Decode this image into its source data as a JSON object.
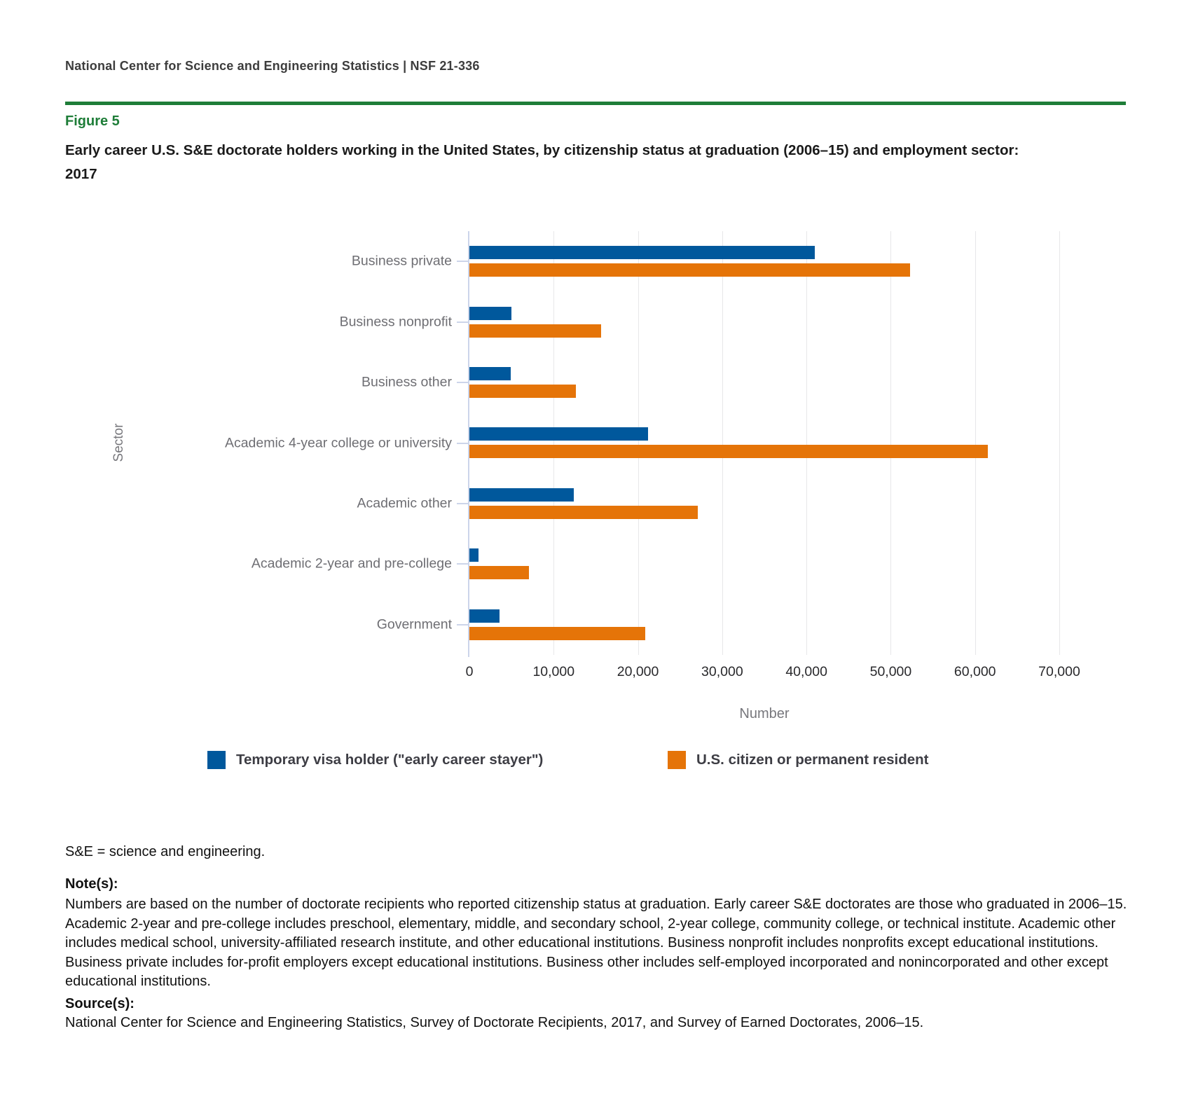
{
  "header": {
    "text": "National Center for Science and Engineering Statistics  |  NSF 21-336"
  },
  "figure_label": "Figure 5",
  "title": "Early career U.S. S&E doctorate holders working in the United States, by citizenship status at graduation (2006–15) and employment sector: 2017",
  "colors": {
    "accent_green": "#1e7d38",
    "series_blue": "#00589c",
    "series_orange": "#e57408",
    "axis_line": "#ccd5ea",
    "gridline": "#e7e7e9"
  },
  "chart_data": {
    "type": "bar",
    "orientation": "horizontal",
    "title": "Early career U.S. S&E doctorate holders working in the United States, by citizenship status at graduation (2006–15) and employment sector: 2017",
    "xlabel": "Number",
    "ylabel": "Sector",
    "xlim": [
      0,
      70000
    ],
    "xticks": [
      "0",
      "10,000",
      "20,000",
      "30,000",
      "40,000",
      "50,000",
      "60,000",
      "70,000"
    ],
    "grid": "vertical",
    "legend_position": "bottom",
    "categories": [
      "Business private",
      "Business nonprofit",
      "Business other",
      "Academic 4-year college or university",
      "Academic other",
      "Academic 2-year and pre-college",
      "Government"
    ],
    "series": [
      {
        "name": "Temporary visa holder (\"early career stayer\")",
        "color": "#00589c",
        "values": [
          41000,
          5000,
          4900,
          21200,
          12400,
          1100,
          3600
        ]
      },
      {
        "name": "U.S. citizen or permanent resident",
        "color": "#e57408",
        "values": [
          52300,
          15600,
          12600,
          61500,
          27100,
          7100,
          20900
        ]
      }
    ]
  },
  "notes": {
    "abbreviation": "S&E = science and engineering.",
    "notes_heading": "Note(s):",
    "notes_body": "Numbers are based on the number of doctorate recipients who reported citizenship status at graduation. Early career S&E doctorates are those who graduated in 2006–15. Academic 2-year and pre-college includes preschool, elementary, middle, and secondary school, 2-year college, community college, or technical institute. Academic other includes medical school, university-affiliated research institute, and other educational institutions. Business nonprofit includes nonprofits except educational institutions. Business private includes for-profit employers except educational institutions. Business other includes self-employed incorporated and nonincorporated and other except educational institutions.",
    "sources_heading": "Source(s):",
    "sources_body": "National Center for Science and Engineering Statistics, Survey of Doctorate Recipients, 2017, and Survey of Earned Doctorates, 2006–15."
  }
}
